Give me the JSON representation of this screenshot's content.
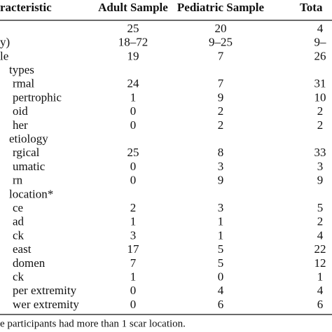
{
  "table": {
    "header": [
      "racteristic",
      "Adult Sample",
      "Pediatric Sample",
      "Tota"
    ],
    "rows": [
      [
        null,
        "25",
        "20",
        "4"
      ],
      [
        "y)",
        "18–72",
        "9–25",
        "9–"
      ],
      [
        "le",
        "19",
        "7",
        "26"
      ]
    ],
    "sections": [
      {
        "title": "types",
        "rows": [
          [
            "rmal",
            "24",
            "7",
            "31"
          ],
          [
            "pertrophic",
            "1",
            "9",
            "10"
          ],
          [
            "oid",
            "0",
            "2",
            "2"
          ],
          [
            "her",
            "0",
            "2",
            "2"
          ]
        ]
      },
      {
        "title": "etiology",
        "rows": [
          [
            "rgical",
            "25",
            "8",
            "33"
          ],
          [
            "umatic",
            "0",
            "3",
            "3"
          ],
          [
            "rn",
            "0",
            "9",
            "9"
          ]
        ]
      },
      {
        "title": "location*",
        "rows": [
          [
            "ce",
            "2",
            "3",
            "5"
          ],
          [
            "ad",
            "1",
            "1",
            "2"
          ],
          [
            "ck",
            "3",
            "1",
            "4"
          ],
          [
            "east",
            "17",
            "5",
            "22"
          ],
          [
            "domen",
            "7",
            "5",
            "12"
          ],
          [
            "ck",
            "1",
            "0",
            "1"
          ],
          [
            "per extremity",
            "0",
            "4",
            "4"
          ],
          [
            "wer extremity",
            "0",
            "6",
            "6"
          ]
        ]
      }
    ],
    "footnote": "e participants had more than 1 scar location."
  }
}
